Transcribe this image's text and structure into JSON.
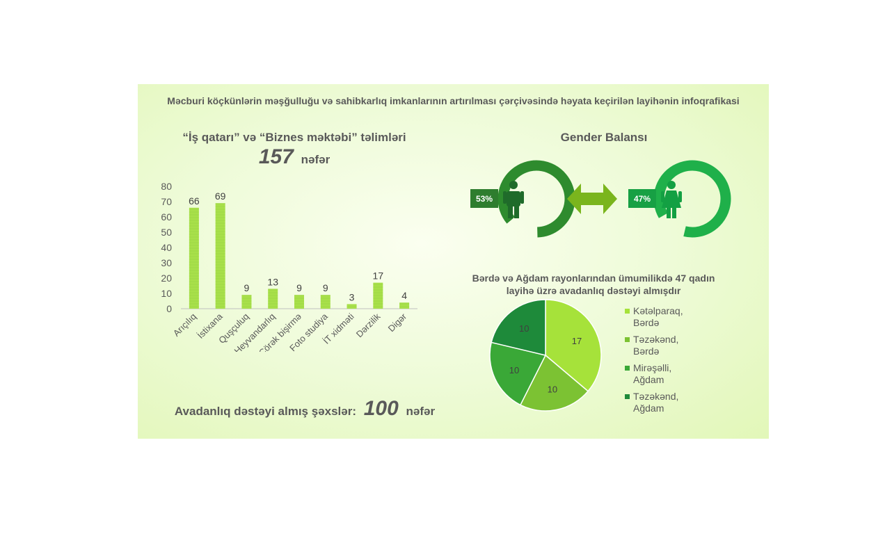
{
  "title": "Məcburi köçkünlərin məşğulluğu və sahibkarlıq imkanlarının artırılması çərçivəsində həyata keçirilən layihənin infoqrafikasi",
  "training": {
    "heading": "“İş qatarı” və “Biznes məktəbi” təlimləri",
    "count": "157",
    "unit": "nəfər"
  },
  "equipment": {
    "label": "Avadanlıq dəstəyi almış şəxslər:",
    "count": "100",
    "unit": "nəfər"
  },
  "gender": {
    "heading": "Gender Balansı",
    "male_percent": "53%",
    "female_percent": "47%",
    "male_ring_color": "#2e8b2e",
    "female_ring_color": "#1fb04a",
    "arrow_color": "#7ab51d"
  },
  "pie_heading": "Bərdə və Ağdam rayonlarından ümumilikdə 47 qadın layihə üzrə avadanlıq dəstəyi almışdır",
  "chart_data": [
    {
      "type": "bar",
      "categories": [
        "Arıçılıq",
        "İstixana",
        "Quşçuluq",
        "Heyvandarlıq",
        "Çörək bişirmə",
        "Foto studiya",
        "İT xidməti",
        "Dərzilik",
        "Digər"
      ],
      "values": [
        66,
        69,
        9,
        13,
        9,
        9,
        3,
        17,
        4
      ],
      "ylim": [
        0,
        80
      ],
      "yticks": [
        "0",
        "10",
        "20",
        "30",
        "40",
        "50",
        "60",
        "70",
        "80"
      ],
      "grid": false,
      "color": "#a8e04a"
    },
    {
      "type": "pie",
      "series": [
        {
          "name": "Kətəlparaq, Bərdə",
          "value": 17,
          "color": "#a6e23a"
        },
        {
          "name": "Təzəkənd, Bərdə",
          "value": 10,
          "color": "#7cc233"
        },
        {
          "name": "Mirəşəlli, Ağdam",
          "value": 10,
          "color": "#3aa837"
        },
        {
          "name": "Təzəkənd, Ağdam",
          "value": 10,
          "color": "#1e8a3a"
        }
      ],
      "legend_position": "right"
    }
  ]
}
